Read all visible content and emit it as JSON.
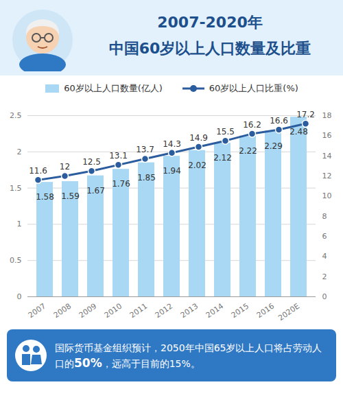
{
  "chart_data": {
    "type": "bar",
    "title": "2007-2020年 中国60岁以上人口数量及比重",
    "categories": [
      "2007",
      "2008",
      "2009",
      "2010",
      "2011",
      "2012",
      "2013",
      "2014",
      "2015",
      "2016",
      "2020E"
    ],
    "series": [
      {
        "name": "60岁以上人口数量(亿人)",
        "type": "bar",
        "color": "#a9d8f4",
        "values": [
          1.58,
          1.59,
          1.67,
          1.76,
          1.85,
          1.94,
          2.02,
          2.12,
          2.22,
          2.29,
          2.48
        ]
      },
      {
        "name": "60岁以上人口比重(%)",
        "type": "line",
        "axis": "y2",
        "color": "#2b5c9e",
        "marker": "circle",
        "values": [
          11.6,
          12,
          12.5,
          13.1,
          13.7,
          14.3,
          14.9,
          15.5,
          16.2,
          16.6,
          17.2
        ]
      }
    ],
    "ylim": [
      0,
      2.5
    ],
    "yticks": [
      0,
      0.5,
      1,
      1.5,
      2,
      2.5
    ],
    "y2lim": [
      0,
      18
    ],
    "y2ticks": [
      0,
      2,
      4,
      6,
      8,
      10,
      12,
      14,
      16,
      18
    ],
    "grid": true,
    "data_labels": true,
    "legend": "top",
    "annotation": [
      "国际货币基金组织预计，2050年中国65岁以上人口将占劳动人口的",
      "50%",
      "，远高于目前的15%。"
    ]
  }
}
